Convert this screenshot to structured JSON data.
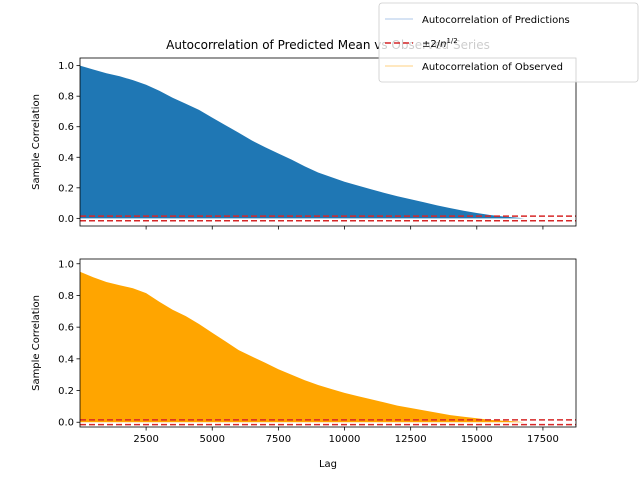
{
  "figure": {
    "title": "Autocorrelation of Predicted Mean vs Observed Series"
  },
  "legend": {
    "entries": [
      {
        "label": "Autocorrelation of Predictions",
        "color": "#aec7e8",
        "style": "solid"
      },
      {
        "label": "±2/n^{1/2}",
        "color": "#d62728",
        "style": "dashed"
      },
      {
        "label": "Autocorrelation of Observed",
        "color": "#ffd280",
        "style": "solid"
      }
    ]
  },
  "chart_data": [
    {
      "type": "area",
      "name": "predictions",
      "ylabel": "Sample Correlation",
      "xlabel": "",
      "xlim": [
        1,
        18750
      ],
      "ylim": [
        -0.05,
        1.05
      ],
      "xticks": [
        2500,
        5000,
        7500,
        10000,
        12500,
        15000,
        17500
      ],
      "yticks": [
        0.0,
        0.2,
        0.4,
        0.6,
        0.8,
        1.0
      ],
      "yticklabels": [
        "0.0",
        "0.2",
        "0.4",
        "0.6",
        "0.8",
        "1.0"
      ],
      "show_xticklabels": false,
      "fill_color": "#1f77b4",
      "conf_band": [
        -0.015,
        0.015
      ],
      "conf_color": "#d62728",
      "x": [
        1,
        500,
        1000,
        1500,
        2000,
        2500,
        3000,
        3500,
        4000,
        4500,
        5000,
        5500,
        6000,
        6500,
        7000,
        7500,
        8000,
        8500,
        9000,
        9500,
        10000,
        10500,
        11000,
        11500,
        12000,
        12500,
        13000,
        13500,
        14000,
        14500,
        15000,
        15500,
        16000,
        16500,
        16800
      ],
      "y": [
        1.0,
        0.975,
        0.95,
        0.93,
        0.905,
        0.875,
        0.835,
        0.79,
        0.75,
        0.71,
        0.66,
        0.61,
        0.56,
        0.51,
        0.465,
        0.425,
        0.385,
        0.34,
        0.3,
        0.27,
        0.24,
        0.215,
        0.19,
        0.167,
        0.145,
        0.125,
        0.105,
        0.085,
        0.067,
        0.05,
        0.035,
        0.022,
        0.012,
        0.005,
        0.0
      ]
    },
    {
      "type": "area",
      "name": "observed",
      "ylabel": "Sample Correlation",
      "xlabel": "Lag",
      "xlim": [
        1,
        18750
      ],
      "ylim": [
        -0.03,
        1.03
      ],
      "xticks": [
        2500,
        5000,
        7500,
        10000,
        12500,
        15000,
        17500
      ],
      "xticklabels": [
        "2500",
        "5000",
        "7500",
        "10000",
        "12500",
        "15000",
        "17500"
      ],
      "yticks": [
        0.0,
        0.2,
        0.4,
        0.6,
        0.8,
        1.0
      ],
      "yticklabels": [
        "0.0",
        "0.2",
        "0.4",
        "0.6",
        "0.8",
        "1.0"
      ],
      "show_xticklabels": true,
      "fill_color": "#ffa500",
      "conf_band": [
        -0.015,
        0.015
      ],
      "conf_color": "#d62728",
      "x": [
        1,
        500,
        1000,
        1500,
        2000,
        2500,
        3000,
        3500,
        4000,
        4500,
        5000,
        5500,
        6000,
        6500,
        7000,
        7500,
        8000,
        8500,
        9000,
        9500,
        10000,
        10500,
        11000,
        11500,
        12000,
        12500,
        13000,
        13500,
        14000,
        14500,
        15000,
        15500,
        16000,
        16500,
        16800
      ],
      "y": [
        0.95,
        0.915,
        0.885,
        0.865,
        0.845,
        0.815,
        0.76,
        0.71,
        0.67,
        0.62,
        0.565,
        0.51,
        0.455,
        0.415,
        0.375,
        0.335,
        0.3,
        0.265,
        0.235,
        0.21,
        0.185,
        0.165,
        0.145,
        0.125,
        0.105,
        0.09,
        0.075,
        0.06,
        0.045,
        0.035,
        0.025,
        0.015,
        0.01,
        0.005,
        0.0
      ]
    }
  ]
}
